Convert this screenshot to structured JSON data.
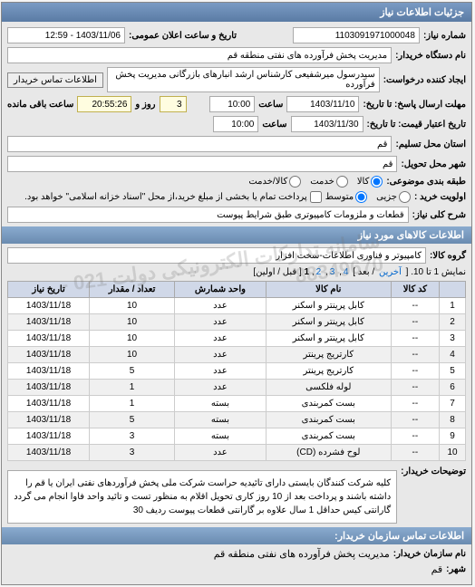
{
  "header": {
    "title": "جزئیات اطلاعات نیاز"
  },
  "top": {
    "req_no_label": "شماره نیاز:",
    "req_no": "1103091971000048",
    "pub_label": "تاریخ و ساعت اعلان عمومی:",
    "pub_value": "1403/11/06 - 12:59",
    "buyer_org_label": "نام دستگاه خریدار:",
    "buyer_org": "مدیریت پخش فرآورده های نفتی منطقه قم",
    "requester_label": "ایجاد کننده درخواست:",
    "requester": "سیدرسول میرشفیعی کارشناس ارشد انبارهای بازرگانی مدیریت پخش فرآورده",
    "contact_btn": "اطلاعات تماس خریدار",
    "deadline_label": "مهلت ارسال پاسخ: تا تاریخ:",
    "deadline_date": "1403/11/10",
    "time_label": "ساعت",
    "deadline_time": "10:00",
    "days_label": "روز و",
    "days": "3",
    "remain_label": "ساعت باقی مانده",
    "remain": "20:55:26",
    "valid_label": "تاریخ اعتبار قیمت: تا تاریخ:",
    "valid_date": "1403/11/30",
    "valid_time": "10:00",
    "province_label": "استان محل تسلیم:",
    "province": "قم",
    "city_label": "شهر محل تحویل:",
    "city": "قم",
    "budget_label": "طبقه بندی موضوعی:",
    "r_goods": "کالا",
    "r_service": "خدمت",
    "r_both": "کالا/خدمت",
    "priority_label": "اولویت خرید :",
    "p_part": "جزیی",
    "p_mid": "متوسط",
    "p_note": "پرداخت تمام یا بخشی از مبلغ خرید،از محل \"اسناد خزانه اسلامی\" خواهد بود.",
    "subject_label": "شرح کلی نیاز:",
    "subject": "قطعات و ملزومات کامپیوتری طبق شرایط پیوست"
  },
  "items": {
    "title": "اطلاعات کالاهای مورد نیاز",
    "group_label": "گروه کالا:",
    "group": "کامپیوتر و فناوری اطلاعات-سخت افزار",
    "pager_text": "نمایش 1 تا 10. [",
    "pager_last": "آخرین",
    "pager_next": "/ بعد ]",
    "pager_nums": [
      "4",
      "3",
      "2"
    ],
    "pager_cur": "1",
    "pager_tail": "[ قبل / اولین]",
    "cols": [
      "",
      "کد کالا",
      "نام کالا",
      "واحد شمارش",
      "تعداد / مقدار",
      "تاریخ نیاز"
    ],
    "rows": [
      [
        "1",
        "--",
        "کابل پرینتر و اسکنر",
        "عدد",
        "10",
        "1403/11/18"
      ],
      [
        "2",
        "--",
        "کابل پرینتر و اسکنر",
        "عدد",
        "10",
        "1403/11/18"
      ],
      [
        "3",
        "--",
        "کابل پرینتر و اسکنر",
        "عدد",
        "10",
        "1403/11/18"
      ],
      [
        "4",
        "--",
        "کارتریج پرینتر",
        "عدد",
        "10",
        "1403/11/18"
      ],
      [
        "5",
        "--",
        "کارتریج پرینتر",
        "عدد",
        "5",
        "1403/11/18"
      ],
      [
        "6",
        "--",
        "لوله فلکسی",
        "عدد",
        "1",
        "1403/11/18"
      ],
      [
        "7",
        "--",
        "بست کمربندی",
        "بسته",
        "1",
        "1403/11/18"
      ],
      [
        "8",
        "--",
        "بست کمربندی",
        "بسته",
        "5",
        "1403/11/18"
      ],
      [
        "9",
        "--",
        "بست کمربندی",
        "بسته",
        "3",
        "1403/11/18"
      ],
      [
        "10",
        "--",
        "لوح فشرده (CD)",
        "عدد",
        "3",
        "1403/11/18"
      ]
    ]
  },
  "notes": {
    "label": "توضیحات خریدار:",
    "text": "کلیه شرکت کنندگان بایستی دارای تائیدیه حراست شرکت ملی پخش فرآوردهای نفتی ایران یا قم را داشته باشند و پرداخت بعد از 10 روز کاری تحویل اقلام به منظور تست و تائید واحد فاوا انجام می گردد گارانتی کیس حداقل 1 سال علاوه بر گارانتی قطعات پیوست ردیف 30"
  },
  "footer": {
    "title": "اطلاعات تماس سازمان خریدار:",
    "org_label": "نام سازمان خریدار:",
    "org": "مدیریت پخش فرآورده های نفتی منطقه قم",
    "city_label": "شهر:",
    "city": "قم"
  },
  "watermark": "سامانه تدارکات الکترونیکی دولت\n021 - 88349670"
}
